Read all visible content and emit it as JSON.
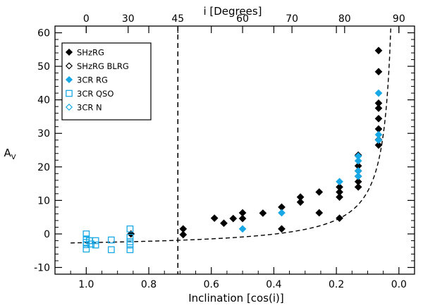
{
  "chart_data": {
    "type": "scatter",
    "xlabel": "Inclination [cos(i)]",
    "ylabel_main": "A",
    "ylabel_sub": "V",
    "top_axis_label": "i [Degrees]",
    "xlim": [
      1.1,
      -0.05
    ],
    "ylim": [
      -12,
      62
    ],
    "x_ticks": [
      1.0,
      0.8,
      0.6,
      0.4,
      0.2,
      0.0
    ],
    "x_tick_labels": [
      "1.0",
      "0.8",
      "0.6",
      "0.4",
      "0.2",
      "0.0"
    ],
    "y_ticks": [
      -10,
      0,
      10,
      20,
      30,
      40,
      50,
      60
    ],
    "y_tick_labels": [
      "-10",
      "0",
      "10",
      "20",
      "30",
      "40",
      "50",
      "60"
    ],
    "top_ticks_deg": [
      0,
      30,
      45,
      60,
      70,
      80,
      90
    ],
    "top_tick_labels": [
      "0",
      "30",
      "45",
      "60",
      "70",
      "80",
      "90"
    ],
    "vertical_line": {
      "x": 0.707,
      "label": "45 degrees"
    },
    "model_curve": "A_V = 1.7 / cos(i) - 4.3",
    "legend": [
      {
        "label": "SHzRG",
        "marker": "diamond-filled",
        "color": "#000000"
      },
      {
        "label": "SHzRG BLRG",
        "marker": "diamond-open",
        "color": "#000000"
      },
      {
        "label": "3CR RG",
        "marker": "diamond-filled",
        "color": "#19A8E6"
      },
      {
        "label": "3CR QSO",
        "marker": "square-open",
        "color": "#19A8E6"
      },
      {
        "label": "3CR N",
        "marker": "diamond-open",
        "color": "#19A8E6"
      }
    ],
    "series": [
      {
        "name": "SHzRG",
        "marker": "diamond-filled",
        "color": "#000000",
        "points": [
          [
            0.857,
            0.0
          ],
          [
            0.69,
            1.5
          ],
          [
            0.69,
            -0.2
          ],
          [
            0.59,
            4.7
          ],
          [
            0.56,
            3.2
          ],
          [
            0.53,
            4.6
          ],
          [
            0.5,
            6.3
          ],
          [
            0.5,
            4.6
          ],
          [
            0.435,
            6.2
          ],
          [
            0.375,
            8.0
          ],
          [
            0.375,
            1.5
          ],
          [
            0.315,
            11.0
          ],
          [
            0.315,
            9.5
          ],
          [
            0.255,
            12.5
          ],
          [
            0.255,
            6.3
          ],
          [
            0.19,
            14.0
          ],
          [
            0.19,
            12.5
          ],
          [
            0.19,
            11.0
          ],
          [
            0.19,
            4.7
          ],
          [
            0.13,
            23.5
          ],
          [
            0.13,
            20.3
          ],
          [
            0.13,
            18.8
          ],
          [
            0.13,
            17.2
          ],
          [
            0.13,
            15.6
          ],
          [
            0.13,
            14.0
          ],
          [
            0.065,
            54.7
          ],
          [
            0.065,
            48.4
          ],
          [
            0.065,
            39.0
          ],
          [
            0.065,
            37.5
          ],
          [
            0.065,
            34.4
          ],
          [
            0.065,
            31.3
          ],
          [
            0.065,
            28.1
          ],
          [
            0.065,
            26.5
          ]
        ]
      },
      {
        "name": "3CR RG",
        "marker": "diamond-filled",
        "color": "#19A8E6",
        "points": [
          [
            0.5,
            1.5
          ],
          [
            0.375,
            6.3
          ],
          [
            0.19,
            15.6
          ],
          [
            0.13,
            23.2
          ],
          [
            0.13,
            21.8
          ],
          [
            0.13,
            18.8
          ],
          [
            0.13,
            17.2
          ],
          [
            0.065,
            42.0
          ],
          [
            0.065,
            29.6
          ],
          [
            0.065,
            28.0
          ]
        ]
      },
      {
        "name": "3CR QSO",
        "marker": "square-open",
        "color": "#19A8E6",
        "points": [
          [
            1.0,
            0.0
          ],
          [
            1.0,
            -1.5
          ],
          [
            1.0,
            -2.5
          ],
          [
            1.0,
            -3.2
          ],
          [
            1.0,
            -4.5
          ],
          [
            0.99,
            -2.0
          ],
          [
            0.985,
            -3.0
          ],
          [
            0.97,
            -2.0
          ],
          [
            0.97,
            -3.3
          ],
          [
            0.92,
            -1.8
          ],
          [
            0.92,
            -4.7
          ],
          [
            0.86,
            1.5
          ],
          [
            0.86,
            -1.0
          ],
          [
            0.86,
            -2.3
          ],
          [
            0.86,
            -3.3
          ],
          [
            0.86,
            -4.7
          ]
        ]
      }
    ]
  }
}
